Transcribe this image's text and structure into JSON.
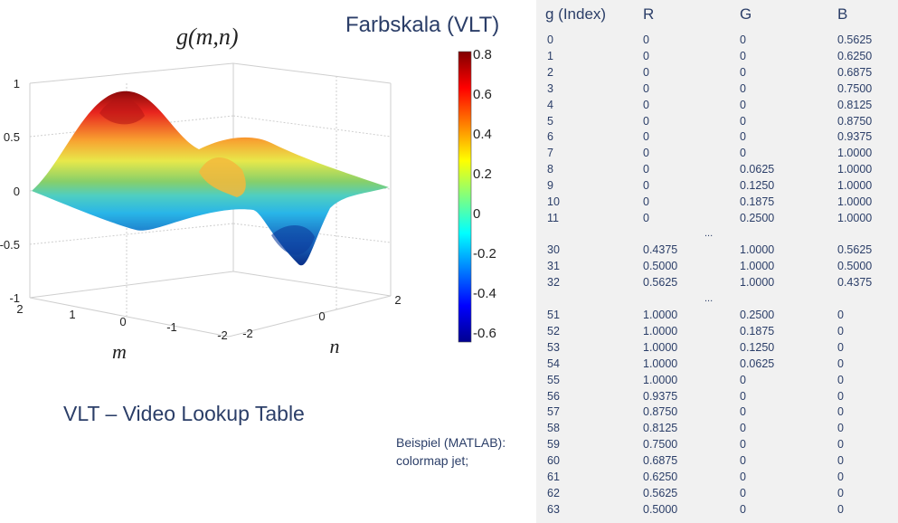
{
  "plot": {
    "title": "g(m,n)",
    "xlabel": "m",
    "ylabel": "n",
    "z_ticks": [
      "1",
      "0.5",
      "0",
      "-0.5",
      "-1"
    ],
    "m_ticks": [
      "2",
      "1",
      "0",
      "-1",
      "-2"
    ],
    "n_ticks": [
      "-2",
      "0",
      "2"
    ]
  },
  "colorbar": {
    "title": "Farbskala (VLT)",
    "ticks": [
      "0.8",
      "0.6",
      "0.4",
      "0.2",
      "0",
      "-0.2",
      "-0.4",
      "-0.6"
    ]
  },
  "caption": "VLT – Video Lookup Table",
  "example": {
    "line1": "Beispiel (MATLAB):",
    "line2": "colormap jet;"
  },
  "lut": {
    "headers": [
      "g (Index)",
      "R",
      "G",
      "B"
    ],
    "groups": [
      [
        [
          "0",
          "0",
          "0",
          "0.5625"
        ],
        [
          "1",
          "0",
          "0",
          "0.6250"
        ],
        [
          "2",
          "0",
          "0",
          "0.6875"
        ],
        [
          "3",
          "0",
          "0",
          "0.7500"
        ],
        [
          "4",
          "0",
          "0",
          "0.8125"
        ],
        [
          "5",
          "0",
          "0",
          "0.8750"
        ],
        [
          "6",
          "0",
          "0",
          "0.9375"
        ],
        [
          "7",
          "0",
          "0",
          "1.0000"
        ],
        [
          "8",
          "0",
          "0.0625",
          "1.0000"
        ],
        [
          "9",
          "0",
          "0.1250",
          "1.0000"
        ],
        [
          "10",
          "0",
          "0.1875",
          "1.0000"
        ],
        [
          "11",
          "0",
          "0.2500",
          "1.0000"
        ]
      ],
      [
        [
          "30",
          "0.4375",
          "1.0000",
          "0.5625"
        ],
        [
          "31",
          "0.5000",
          "1.0000",
          "0.5000"
        ],
        [
          "32",
          "0.5625",
          "1.0000",
          "0.4375"
        ]
      ],
      [
        [
          "51",
          "1.0000",
          "0.2500",
          "0"
        ],
        [
          "52",
          "1.0000",
          "0.1875",
          "0"
        ],
        [
          "53",
          "1.0000",
          "0.1250",
          "0"
        ],
        [
          "54",
          "1.0000",
          "0.0625",
          "0"
        ],
        [
          "55",
          "1.0000",
          "0",
          "0"
        ],
        [
          "56",
          "0.9375",
          "0",
          "0"
        ],
        [
          "57",
          "0.8750",
          "0",
          "0"
        ],
        [
          "58",
          "0.8125",
          "0",
          "0"
        ],
        [
          "59",
          "0.7500",
          "0",
          "0"
        ],
        [
          "60",
          "0.6875",
          "0",
          "0"
        ],
        [
          "61",
          "0.6250",
          "0",
          "0"
        ],
        [
          "62",
          "0.5625",
          "0",
          "0"
        ],
        [
          "63",
          "0.5000",
          "0",
          "0"
        ]
      ]
    ],
    "ellipsis": "..."
  },
  "colors": {
    "text_blue": "#2b3e68",
    "table_bg": "#f1f1f1"
  }
}
